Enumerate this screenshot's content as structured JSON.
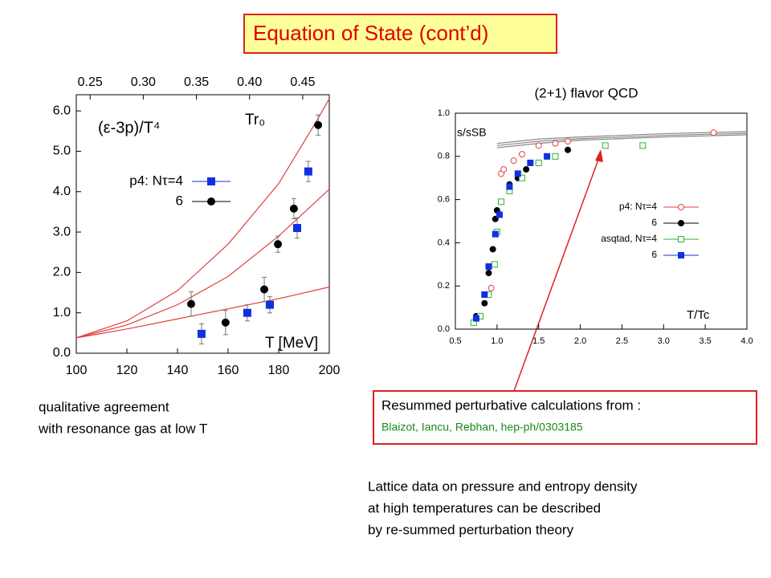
{
  "slide": {
    "title": "Equation of State (cont’d)",
    "left_caption": [
      "qualitative agreement",
      "with resonance gas at low T"
    ],
    "box": [
      "Resummed perturbative calculations from :",
      "Blaizot, Iancu, Rebhan, hep-ph/0303185"
    ],
    "bottom_text": [
      "Lattice data on pressure and entropy density",
      "at high temperatures can be described",
      "by re-summed   perturbation theory"
    ]
  },
  "chart_data": [
    {
      "type": "scatter",
      "ylabel": "(ε-3p)/T⁴",
      "xlabel": "T [MeV]",
      "annotation": "Tr₀",
      "xlim": [
        100,
        200
      ],
      "xticks": [
        100,
        120,
        140,
        160,
        180,
        200
      ],
      "x2lim": [
        0.237,
        0.475
      ],
      "x2ticks": [
        {
          "value": 0.25,
          "label": "0.25"
        },
        {
          "value": 0.3,
          "label": "0.30"
        },
        {
          "value": 0.35,
          "label": "0.35"
        },
        {
          "value": 0.4,
          "label": "0.40"
        },
        {
          "value": 0.45,
          "label": "0.45"
        }
      ],
      "ylim": [
        0,
        6.4
      ],
      "yticks": [
        {
          "value": 0,
          "label": "0.0"
        },
        {
          "value": 1,
          "label": "1.0"
        },
        {
          "value": 2,
          "label": "2.0"
        },
        {
          "value": 3,
          "label": "3.0"
        },
        {
          "value": 4,
          "label": "4.0"
        },
        {
          "value": 5,
          "label": "5.0"
        },
        {
          "value": 6,
          "label": "6.0"
        }
      ],
      "series": [
        {
          "name": "p4: Nτ=4",
          "color": "#1030e0",
          "marker": "square",
          "filled": true,
          "x": [
            149.5,
            167.6,
            176.5,
            187.3,
            191.7
          ],
          "values": [
            0.48,
            1.0,
            1.2,
            3.1,
            4.5
          ],
          "errors": [
            0.25,
            0.2,
            0.2,
            0.25,
            0.25
          ]
        },
        {
          "name": "6",
          "color": "#000000",
          "marker": "circle",
          "filled": true,
          "x": [
            145.4,
            159.0,
            174.3,
            179.7,
            186.0,
            195.6
          ],
          "values": [
            1.22,
            0.76,
            1.58,
            2.7,
            3.58,
            5.65
          ],
          "errors": [
            0.3,
            0.3,
            0.3,
            0.2,
            0.25,
            0.25
          ]
        }
      ],
      "curves": [
        {
          "color": "#e04040",
          "x": [
            100,
            120,
            140,
            160,
            180,
            195,
            200
          ],
          "values": [
            0.38,
            0.8,
            1.55,
            2.7,
            4.2,
            5.75,
            6.3
          ]
        },
        {
          "color": "#e04040",
          "x": [
            100,
            120,
            140,
            160,
            180,
            200
          ],
          "values": [
            0.38,
            0.7,
            1.2,
            1.9,
            2.9,
            4.06
          ]
        },
        {
          "color": "#e04040",
          "x": [
            100,
            120,
            140,
            160,
            180,
            200
          ],
          "values": [
            0.38,
            0.6,
            0.85,
            1.1,
            1.35,
            1.64
          ]
        }
      ]
    },
    {
      "type": "scatter",
      "title": "(2+1) flavor QCD",
      "ylabel": "s/sSB",
      "xlabel": "T/Tc",
      "xlim": [
        0.5,
        4.0
      ],
      "xticks": [
        0.5,
        {
          "value": 1,
          "label": "1.0"
        },
        1.5,
        {
          "value": 2,
          "label": "2.0"
        },
        2.5,
        {
          "value": 3,
          "label": "3.0"
        },
        3.5,
        {
          "value": 4,
          "label": "4.0"
        }
      ],
      "ylim": [
        0,
        1
      ],
      "yticks": [
        {
          "value": 0,
          "label": "0.0"
        },
        0.2,
        0.4,
        0.6,
        0.8,
        {
          "value": 1,
          "label": "1.0"
        }
      ],
      "series": [
        {
          "name": "p4: Nτ=4",
          "color": "#e04040",
          "marker": "circle",
          "filled": false,
          "x": [
            0.93,
            1.05,
            1.08,
            1.2,
            1.3,
            1.5,
            1.7,
            1.85,
            3.6
          ],
          "values": [
            0.19,
            0.72,
            0.74,
            0.78,
            0.81,
            0.85,
            0.86,
            0.87,
            0.91
          ]
        },
        {
          "name": "6",
          "color": "#000000",
          "marker": "circle",
          "filled": true,
          "x": [
            0.75,
            0.85,
            0.9,
            0.95,
            0.98,
            1.0,
            1.15,
            1.25,
            1.35,
            1.5,
            1.85
          ],
          "values": [
            0.06,
            0.12,
            0.26,
            0.37,
            0.51,
            0.55,
            0.67,
            0.7,
            0.74,
            0.77,
            0.83
          ]
        },
        {
          "name": "asqtad, Nτ=4",
          "color": "#30b030",
          "marker": "square",
          "filled": false,
          "x": [
            0.72,
            0.8,
            0.9,
            0.97,
            1.0,
            1.05,
            1.15,
            1.3,
            1.5,
            1.7,
            2.3,
            2.75
          ],
          "values": [
            0.03,
            0.06,
            0.16,
            0.3,
            0.45,
            0.59,
            0.64,
            0.7,
            0.77,
            0.8,
            0.85,
            0.85
          ]
        },
        {
          "name": "6",
          "color": "#1030e0",
          "marker": "square",
          "filled": true,
          "x": [
            0.75,
            0.85,
            0.9,
            0.98,
            1.03,
            1.15,
            1.25,
            1.4,
            1.6
          ],
          "values": [
            0.05,
            0.16,
            0.29,
            0.44,
            0.53,
            0.66,
            0.72,
            0.77,
            0.8
          ]
        }
      ],
      "curves": [
        {
          "color": "#888888",
          "x": [
            1.0,
            1.5,
            2,
            3,
            4
          ],
          "values": [
            0.86,
            0.88,
            0.89,
            0.905,
            0.915
          ]
        },
        {
          "color": "#888888",
          "x": [
            1.0,
            1.5,
            2,
            3,
            4
          ],
          "values": [
            0.85,
            0.87,
            0.882,
            0.897,
            0.907
          ]
        },
        {
          "color": "#888888",
          "x": [
            1.0,
            1.5,
            2,
            3,
            4
          ],
          "values": [
            0.84,
            0.86,
            0.875,
            0.89,
            0.9
          ]
        }
      ]
    }
  ]
}
